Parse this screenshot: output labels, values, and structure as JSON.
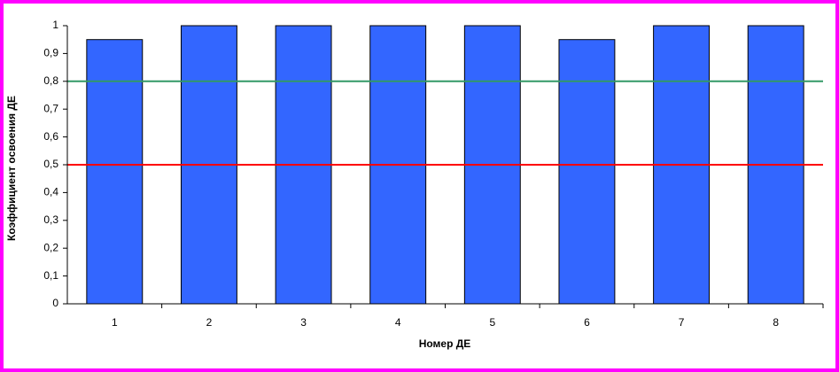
{
  "chart_data": {
    "type": "bar",
    "x_label": "Номер ДЕ",
    "y_label": "Коэффициент освоения ДЕ",
    "categories": [
      "1",
      "2",
      "3",
      "4",
      "5",
      "6",
      "7",
      "8"
    ],
    "values": [
      0.95,
      1,
      1,
      1,
      1,
      0.95,
      1,
      1
    ],
    "color": "#3366ff",
    "ylim": [
      0,
      1
    ],
    "yticks": [
      0,
      {
        "value": 0.1,
        "label": "0,1"
      },
      {
        "value": 0.2,
        "label": "0,2"
      },
      {
        "value": 0.3,
        "label": "0,3"
      },
      {
        "value": 0.4,
        "label": "0,4"
      },
      {
        "value": 0.5,
        "label": "0,5"
      },
      {
        "value": 0.6,
        "label": "0,6"
      },
      {
        "value": 0.7,
        "label": "0,7"
      },
      {
        "value": 0.8,
        "label": "0,8"
      },
      {
        "value": 0.9,
        "label": "0,9"
      },
      1
    ],
    "reference_lines": [
      {
        "value": 0.8,
        "color": "#339966"
      },
      {
        "value": 0.5,
        "color": "#ff0000"
      }
    ]
  }
}
